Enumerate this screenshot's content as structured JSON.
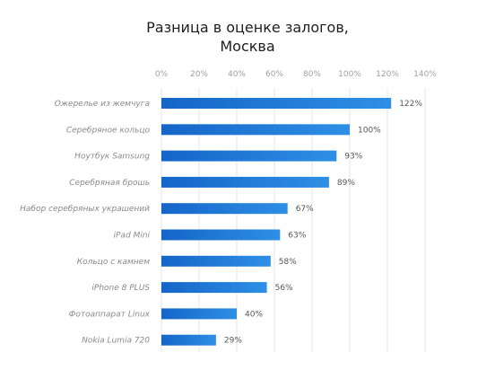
{
  "chart_data": {
    "type": "bar",
    "orientation": "horizontal",
    "title": "Разница в оценке залогов,\nМосква",
    "xlabel": "",
    "ylabel": "",
    "xlim": [
      0,
      140
    ],
    "x_ticks": [
      0,
      20,
      40,
      60,
      80,
      100,
      120,
      140
    ],
    "x_tick_labels": [
      "0%",
      "20%",
      "40%",
      "60%",
      "80%",
      "100%",
      "120%",
      "140%"
    ],
    "x_axis_position": "top",
    "grid": true,
    "legend": "none",
    "categories": [
      "Ожерелье из жемчуга",
      "Серебряное кольцо",
      "Ноутбук Samsung",
      "Серебряная брошь",
      "Набор серебряных украшений",
      "iPad Mini",
      "Кольцо с камнем",
      "iPhone 8 PLUS",
      "Фотоаппарат Linux",
      "Nokia Lumia 720"
    ],
    "values": [
      122,
      100,
      93,
      89,
      67,
      63,
      58,
      56,
      40,
      29
    ],
    "value_labels": [
      "122%",
      "100%",
      "93%",
      "89%",
      "67%",
      "63%",
      "58%",
      "56%",
      "40%",
      "29%"
    ],
    "colors": {
      "bar_start": "#1565c8",
      "bar_end": "#2e8fe6",
      "grid": "#e6e6e6"
    }
  }
}
